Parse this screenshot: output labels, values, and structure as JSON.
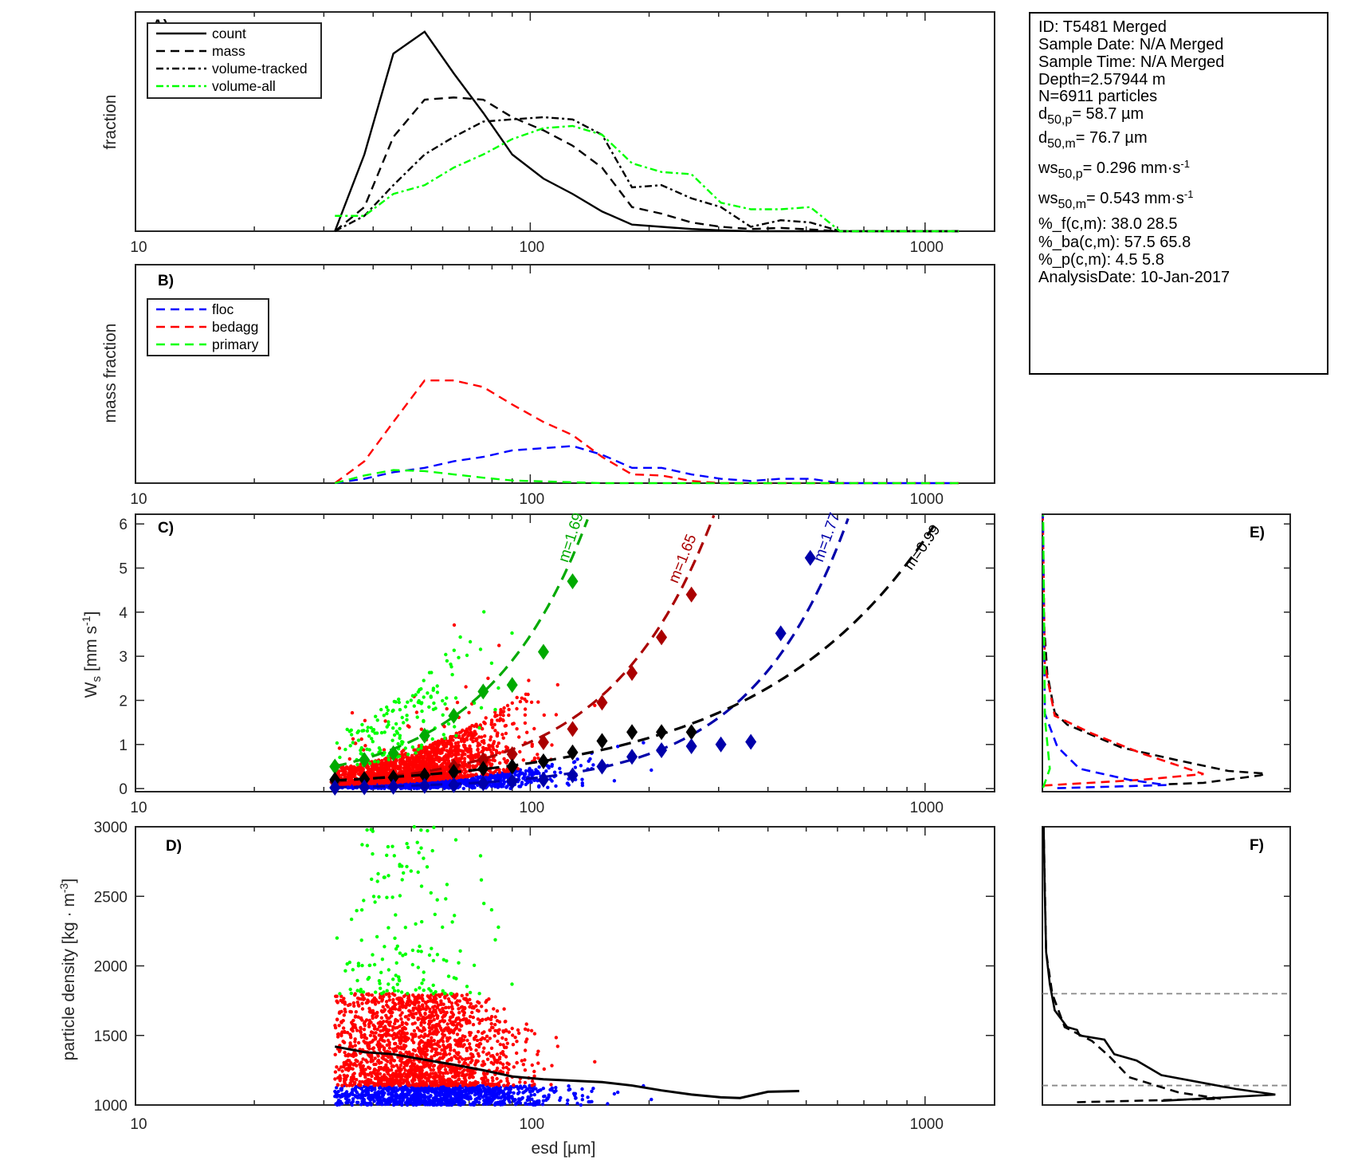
{
  "info_box": {
    "lines": [
      {
        "main": "ID: T5481 Merged"
      },
      {
        "main": "Sample Date: N/A Merged"
      },
      {
        "main": "Sample Time: N/A Merged"
      },
      {
        "main": "Depth=2.57944 m"
      },
      {
        "main": "N=6911 particles"
      },
      {
        "main": "d",
        "sub": "50,p",
        "rest": "=  58.7 µm"
      },
      {
        "main": "d",
        "sub": "50,m",
        "rest": "=  76.7 µm"
      },
      {
        "main": "ws",
        "sub": "50,p",
        "rest": "= 0.296 mm·s",
        "sup": "-1"
      },
      {
        "main": "ws",
        "sub": "50,m",
        "rest": "= 0.543 mm·s",
        "sup": "-1"
      },
      {
        "main": "%_f(c,m): 38.0 28.5"
      },
      {
        "main": "%_ba(c,m): 57.5 65.8"
      },
      {
        "main": "%_p(c,m): 4.5 5.8"
      },
      {
        "main": "AnalysisDate: 10-Jan-2017"
      }
    ]
  },
  "colors": {
    "floc": "#0000ff",
    "bedagg": "#ff0000",
    "primary": "#00ff00",
    "floc_dark": "#0000aa",
    "bedagg_dark": "#aa0000",
    "primary_dark": "#00aa00",
    "all": "#000000",
    "ref_lines": "#888888"
  },
  "chart_data": [
    {
      "panel": "A)",
      "type": "line",
      "xscale": "log",
      "xlim": [
        10,
        1500
      ],
      "ylim": [
        0,
        1
      ],
      "xticklabels": [
        "10",
        "100",
        "1000"
      ],
      "ylabel": "fraction",
      "legend_position": "top-left",
      "x": [
        32,
        38,
        45,
        54,
        64,
        76,
        90,
        108,
        128,
        152,
        181,
        215,
        256,
        304,
        362,
        431,
        512,
        609,
        724,
        861,
        1024,
        1218
      ],
      "series": [
        {
          "name": "count",
          "style": "solid",
          "color": "#000000",
          "values": [
            0,
            0.35,
            0.81,
            0.91,
            0.72,
            0.54,
            0.35,
            0.24,
            0.17,
            0.09,
            0.03,
            0.02,
            0.01,
            0.004,
            0,
            0,
            0,
            0,
            0,
            0,
            0,
            0
          ]
        },
        {
          "name": "mass",
          "style": "dashed",
          "color": "#000000",
          "values": [
            0,
            0.11,
            0.43,
            0.6,
            0.61,
            0.6,
            0.52,
            0.46,
            0.39,
            0.29,
            0.11,
            0.08,
            0.04,
            0.02,
            0.01,
            0.015,
            0.008,
            0,
            0,
            0,
            0,
            0
          ]
        },
        {
          "name": "volume-tracked",
          "style": "dashdot",
          "color": "#000000",
          "values": [
            0,
            0.07,
            0.21,
            0.35,
            0.43,
            0.5,
            0.51,
            0.52,
            0.51,
            0.44,
            0.2,
            0.21,
            0.15,
            0.11,
            0.02,
            0.05,
            0.04,
            0,
            0,
            0,
            0,
            0
          ]
        },
        {
          "name": "volume-all",
          "style": "dashdot",
          "color": "#00ff00",
          "values": [
            0.07,
            0.07,
            0.17,
            0.21,
            0.29,
            0.35,
            0.42,
            0.47,
            0.48,
            0.44,
            0.31,
            0.27,
            0.26,
            0.13,
            0.1,
            0.1,
            0.11,
            0,
            0,
            0,
            0,
            0
          ]
        }
      ]
    },
    {
      "panel": "B)",
      "type": "line",
      "xscale": "log",
      "xlim": [
        10,
        1500
      ],
      "ylim": [
        0,
        1
      ],
      "xticklabels": [
        "10",
        "100",
        "1000"
      ],
      "ylabel": "mass fraction",
      "legend_position": "top-left",
      "x": [
        32,
        38,
        45,
        54,
        64,
        76,
        90,
        108,
        128,
        152,
        181,
        215,
        256,
        304,
        362,
        431,
        512,
        609,
        724,
        861,
        1024,
        1218
      ],
      "series": [
        {
          "name": "floc",
          "style": "dashed",
          "color": "#0000ff",
          "values": [
            0,
            0.02,
            0.05,
            0.07,
            0.1,
            0.12,
            0.15,
            0.16,
            0.17,
            0.13,
            0.07,
            0.07,
            0.04,
            0.02,
            0.01,
            0.02,
            0.02,
            0,
            0,
            0,
            0,
            0
          ]
        },
        {
          "name": "bedagg",
          "style": "dashed",
          "color": "#ff0000",
          "values": [
            0,
            0.1,
            0.28,
            0.47,
            0.47,
            0.44,
            0.36,
            0.28,
            0.22,
            0.12,
            0.04,
            0.035,
            0.01,
            0,
            0,
            0,
            0,
            0,
            0,
            0,
            0,
            0
          ]
        },
        {
          "name": "primary",
          "style": "dashed",
          "color": "#00ff00",
          "values": [
            0,
            0.035,
            0.06,
            0.055,
            0.04,
            0.025,
            0.012,
            0.008,
            0.004,
            0,
            0,
            0,
            0,
            0,
            0,
            0,
            0,
            0,
            0,
            0,
            0,
            0
          ]
        }
      ]
    },
    {
      "panel": "C)",
      "type": "scatter",
      "xscale": "log",
      "xlim": [
        10,
        1500
      ],
      "ylim": [
        -0.07,
        6.22
      ],
      "xticklabels": [
        "10",
        "100",
        "1000"
      ],
      "yticks": [
        0,
        1,
        2,
        3,
        4,
        5,
        6
      ],
      "ylabel": {
        "main": "W",
        "sub": "s",
        "rest": " [mm s",
        "sup": "-1",
        "end": "]"
      },
      "binned_means": [
        {
          "class": "primary",
          "color": "#00aa00",
          "points": [
            [
              32,
              0.5
            ],
            [
              38,
              0.65
            ],
            [
              45,
              0.8
            ],
            [
              54,
              1.2
            ],
            [
              64,
              1.65
            ],
            [
              76,
              2.2
            ],
            [
              90,
              2.35
            ],
            [
              108,
              3.1
            ],
            [
              128,
              4.7
            ]
          ]
        },
        {
          "class": "bedagg",
          "color": "#aa0000",
          "points": [
            [
              32,
              0.15
            ],
            [
              38,
              0.2
            ],
            [
              45,
              0.25
            ],
            [
              54,
              0.3
            ],
            [
              64,
              0.5
            ],
            [
              76,
              0.65
            ],
            [
              90,
              0.78
            ],
            [
              108,
              1.05
            ],
            [
              128,
              1.35
            ],
            [
              152,
              1.95
            ],
            [
              181,
              2.62
            ],
            [
              215,
              3.43
            ],
            [
              256,
              4.4
            ]
          ]
        },
        {
          "class": "all",
          "color": "#000000",
          "points": [
            [
              32,
              0.2
            ],
            [
              38,
              0.22
            ],
            [
              45,
              0.25
            ],
            [
              54,
              0.3
            ],
            [
              64,
              0.38
            ],
            [
              76,
              0.45
            ],
            [
              90,
              0.5
            ],
            [
              108,
              0.62
            ],
            [
              128,
              0.82
            ],
            [
              152,
              1.08
            ],
            [
              181,
              1.28
            ],
            [
              215,
              1.28
            ],
            [
              256,
              1.28
            ]
          ]
        },
        {
          "class": "floc",
          "color": "#0000aa",
          "points": [
            [
              32,
              0.02
            ],
            [
              38,
              0.03
            ],
            [
              45,
              0.04
            ],
            [
              54,
              0.06
            ],
            [
              64,
              0.08
            ],
            [
              76,
              0.12
            ],
            [
              90,
              0.16
            ],
            [
              108,
              0.2
            ],
            [
              128,
              0.3
            ],
            [
              152,
              0.5
            ],
            [
              181,
              0.72
            ],
            [
              215,
              0.87
            ],
            [
              256,
              0.96
            ],
            [
              304,
              1.0
            ],
            [
              362,
              1.06
            ],
            [
              431,
              3.52
            ],
            [
              512,
              5.23
            ]
          ]
        }
      ],
      "fits": [
        {
          "label": "m=1.69",
          "m": 1.69,
          "color": "#00aa00",
          "ref_esd": 141,
          "ref_ws": 6.2,
          "esd_start": 32
        },
        {
          "label": "m=1.65",
          "m": 1.65,
          "color": "#aa0000",
          "ref_esd": 292,
          "ref_ws": 6.2,
          "esd_start": 32
        },
        {
          "label": "m=1.77",
          "m": 1.77,
          "color": "#0000aa",
          "ref_esd": 643,
          "ref_ws": 6.2,
          "esd_start": 32
        },
        {
          "label": "m=0.99",
          "m": 0.99,
          "color": "#000000",
          "ref_esd": 1060,
          "ref_ws": 6.0,
          "esd_start": 32
        }
      ]
    },
    {
      "panel": "D)",
      "type": "scatter",
      "xscale": "log",
      "xlim": [
        10,
        1500
      ],
      "ylim": [
        1000,
        3000
      ],
      "xticklabels": [
        "10",
        "100",
        "1000"
      ],
      "yticks": [
        1000,
        1500,
        2000,
        2500,
        3000
      ],
      "xlabel": "esd [µm]",
      "ylabel": {
        "main": "particle density [kg · m",
        "sup": "-3",
        "end": "]"
      },
      "mean_line": [
        [
          32,
          1420
        ],
        [
          38,
          1380
        ],
        [
          45,
          1365
        ],
        [
          54,
          1325
        ],
        [
          64,
          1290
        ],
        [
          76,
          1250
        ],
        [
          90,
          1205
        ],
        [
          108,
          1185
        ],
        [
          128,
          1175
        ],
        [
          152,
          1165
        ],
        [
          181,
          1140
        ],
        [
          215,
          1105
        ],
        [
          256,
          1075
        ],
        [
          304,
          1055
        ],
        [
          340,
          1050
        ],
        [
          400,
          1095
        ],
        [
          480,
          1100
        ]
      ]
    },
    {
      "panel": "E)",
      "type": "line",
      "xlim": [
        0,
        1
      ],
      "ylim": [
        -0.07,
        6.22
      ],
      "series": [
        {
          "class": "all",
          "color": "#000000",
          "points": [
            [
              0.51,
              0.1
            ],
            [
              0.65,
              0.13
            ],
            [
              0.88,
              0.3
            ],
            [
              0.9,
              0.34
            ],
            [
              0.75,
              0.4
            ],
            [
              0.54,
              0.65
            ],
            [
              0.32,
              0.93
            ],
            [
              0.1,
              1.45
            ],
            [
              0.05,
              1.72
            ],
            [
              0.02,
              2.6
            ],
            [
              0.005,
              3.84
            ],
            [
              0.002,
              6.2
            ]
          ]
        },
        {
          "class": "bedagg",
          "color": "#ff0000",
          "points": [
            [
              0.005,
              0.07
            ],
            [
              0.4,
              0.2
            ],
            [
              0.65,
              0.33
            ],
            [
              0.56,
              0.5
            ],
            [
              0.4,
              0.8
            ],
            [
              0.2,
              1.25
            ],
            [
              0.05,
              1.65
            ],
            [
              0.01,
              2.8
            ],
            [
              0.002,
              6.2
            ]
          ]
        },
        {
          "class": "floc",
          "color": "#0000ff",
          "points": [
            [
              0.06,
              0.01
            ],
            [
              0.5,
              0.08
            ],
            [
              0.35,
              0.2
            ],
            [
              0.15,
              0.45
            ],
            [
              0.06,
              0.95
            ],
            [
              0.01,
              1.7
            ],
            [
              0.002,
              6.2
            ]
          ]
        },
        {
          "class": "primary",
          "color": "#00ff00",
          "points": [
            [
              0.003,
              0.02
            ],
            [
              0.03,
              0.45
            ],
            [
              0.01,
              1.6
            ],
            [
              0.003,
              6.2
            ]
          ]
        }
      ]
    },
    {
      "panel": "F)",
      "type": "line",
      "xlim": [
        0,
        1
      ],
      "ylim": [
        1000,
        3000
      ],
      "reference_lines": [
        1800,
        1140
      ],
      "series": [
        {
          "style": "solid",
          "color": "#000000",
          "points": [
            [
              0.48,
              1030
            ],
            [
              0.94,
              1075
            ],
            [
              0.78,
              1115
            ],
            [
              0.48,
              1215
            ],
            [
              0.38,
              1320
            ],
            [
              0.29,
              1365
            ],
            [
              0.25,
              1470
            ],
            [
              0.15,
              1500
            ],
            [
              0.14,
              1540
            ],
            [
              0.1,
              1560
            ],
            [
              0.05,
              1680
            ],
            [
              0.03,
              1870
            ],
            [
              0.015,
              2100
            ],
            [
              0.01,
              2500
            ],
            [
              0.005,
              3000
            ]
          ]
        },
        {
          "style": "dashed",
          "color": "#000000",
          "points": [
            [
              0.14,
              1020
            ],
            [
              0.72,
              1045
            ],
            [
              0.55,
              1090
            ],
            [
              0.35,
              1200
            ],
            [
              0.27,
              1350
            ],
            [
              0.2,
              1460
            ],
            [
              0.09,
              1560
            ],
            [
              0.04,
              1800
            ],
            [
              0.015,
              2100
            ],
            [
              0.005,
              3000
            ]
          ]
        }
      ]
    }
  ]
}
